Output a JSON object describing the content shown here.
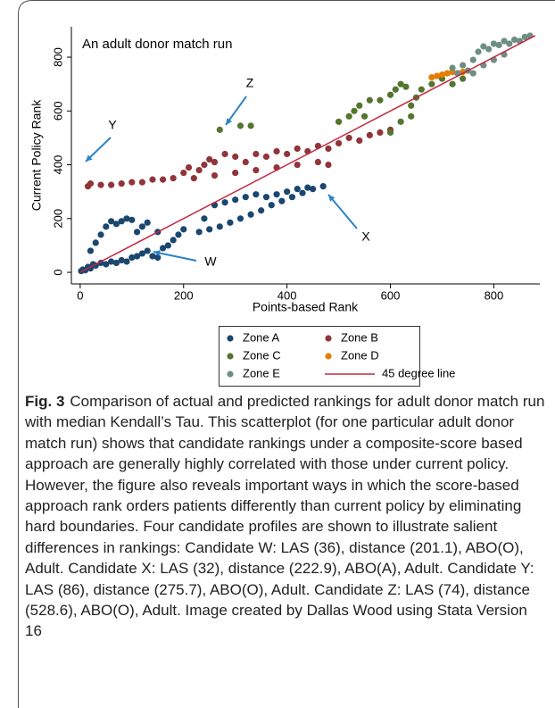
{
  "chart_data": {
    "type": "scatter",
    "title": "An adult donor match run",
    "xlabel": "Points-based Rank",
    "ylabel": "Current Policy Rank",
    "xlim": [
      -17,
      889
    ],
    "ylim": [
      -43,
      913
    ],
    "xticks": [
      0,
      200,
      400,
      600,
      800
    ],
    "yticks": [
      0,
      200,
      400,
      600,
      800
    ],
    "series": [
      {
        "name": "Zone A",
        "color": "#1a476f",
        "x": [
          2,
          5,
          10,
          15,
          20,
          25,
          30,
          40,
          50,
          60,
          70,
          80,
          90,
          100,
          110,
          120,
          130,
          140,
          150,
          160,
          170,
          180,
          190,
          200,
          20,
          30,
          40,
          50,
          60,
          70,
          80,
          90,
          100,
          110,
          120,
          130,
          150,
          230,
          250,
          270,
          290,
          310,
          330,
          350,
          370,
          390,
          410,
          430,
          450,
          470,
          240,
          260,
          280,
          300,
          320,
          340,
          360,
          380,
          400,
          420,
          440
        ],
        "values": [
          5,
          10,
          8,
          20,
          15,
          30,
          25,
          35,
          30,
          40,
          35,
          45,
          40,
          55,
          60,
          70,
          80,
          60,
          55,
          90,
          100,
          120,
          140,
          160,
          80,
          110,
          140,
          170,
          190,
          180,
          190,
          200,
          195,
          150,
          170,
          185,
          150,
          150,
          160,
          170,
          185,
          200,
          215,
          230,
          250,
          265,
          280,
          295,
          310,
          320,
          200,
          250,
          260,
          270,
          280,
          290,
          280,
          290,
          300,
          310,
          315
        ]
      },
      {
        "name": "Zone B",
        "color": "#90353b",
        "x": [
          15,
          20,
          40,
          60,
          80,
          100,
          120,
          140,
          160,
          180,
          200,
          210,
          230,
          240,
          250,
          260,
          280,
          300,
          320,
          340,
          360,
          380,
          400,
          420,
          440,
          460,
          480,
          500,
          520,
          540,
          560,
          580,
          600,
          220,
          260,
          300,
          340,
          380,
          420,
          460,
          480
        ],
        "values": [
          320,
          330,
          325,
          325,
          330,
          335,
          335,
          345,
          345,
          350,
          370,
          390,
          380,
          400,
          420,
          410,
          440,
          430,
          410,
          440,
          430,
          450,
          440,
          460,
          450,
          470,
          460,
          480,
          500,
          490,
          510,
          520,
          530,
          350,
          360,
          370,
          380,
          390,
          400,
          410,
          400
        ]
      },
      {
        "name": "Zone C",
        "color": "#55752f",
        "x": [
          270,
          310,
          330,
          500,
          520,
          530,
          540,
          550,
          560,
          580,
          600,
          610,
          620,
          630,
          640,
          650,
          660,
          680,
          700,
          720,
          740,
          600,
          620,
          640
        ],
        "values": [
          530,
          545,
          545,
          560,
          580,
          600,
          620,
          580,
          640,
          640,
          660,
          680,
          700,
          690,
          620,
          650,
          680,
          700,
          720,
          700,
          720,
          520,
          560,
          580
        ]
      },
      {
        "name": "Zone D",
        "color": "#e37e00",
        "x": [
          680,
          690,
          700,
          710,
          720,
          730,
          740
        ],
        "values": [
          725,
          730,
          735,
          740,
          745,
          740,
          745
        ]
      },
      {
        "name": "Zone E",
        "color": "#6e8e84",
        "x": [
          720,
          740,
          760,
          770,
          780,
          790,
          800,
          810,
          820,
          830,
          840,
          850,
          860,
          870,
          730,
          750,
          760,
          780,
          800,
          820
        ],
        "values": [
          760,
          770,
          790,
          820,
          840,
          830,
          850,
          845,
          860,
          850,
          865,
          860,
          875,
          880,
          740,
          750,
          740,
          770,
          790,
          810
        ]
      },
      {
        "name": "45 degree line",
        "color": "#c0283e",
        "type": "line",
        "x": [
          0,
          880
        ],
        "values": [
          0,
          880
        ]
      }
    ],
    "annotations": [
      {
        "text": "W"
      },
      {
        "text": "X"
      },
      {
        "text": "Y"
      },
      {
        "text": "Z"
      }
    ]
  },
  "caption": {
    "label": "Fig. 3",
    "text": "Comparison of actual and predicted rankings for adult donor match run with median Kendall’s Tau. This scatterplot (for one particular adult donor match run) shows that candidate rankings under a composite-score based approach are generally highly correlated with those under current policy. However, the figure also reveals important ways in which the score-based approach rank orders patients differently than current policy by eliminating hard boundaries. Four candidate profiles are shown to illustrate salient differences in rankings: Candidate W: LAS (36), distance (201.1), ABO(O), Adult. Candidate X: LAS (32), distance (222.9), ABO(A), Adult. Candidate Y: LAS (86), distance (275.7), ABO(O), Adult. Candidate Z: LAS (74), distance (528.6), ABO(O), Adult. Image created by Dallas Wood using Stata Version 16"
  }
}
